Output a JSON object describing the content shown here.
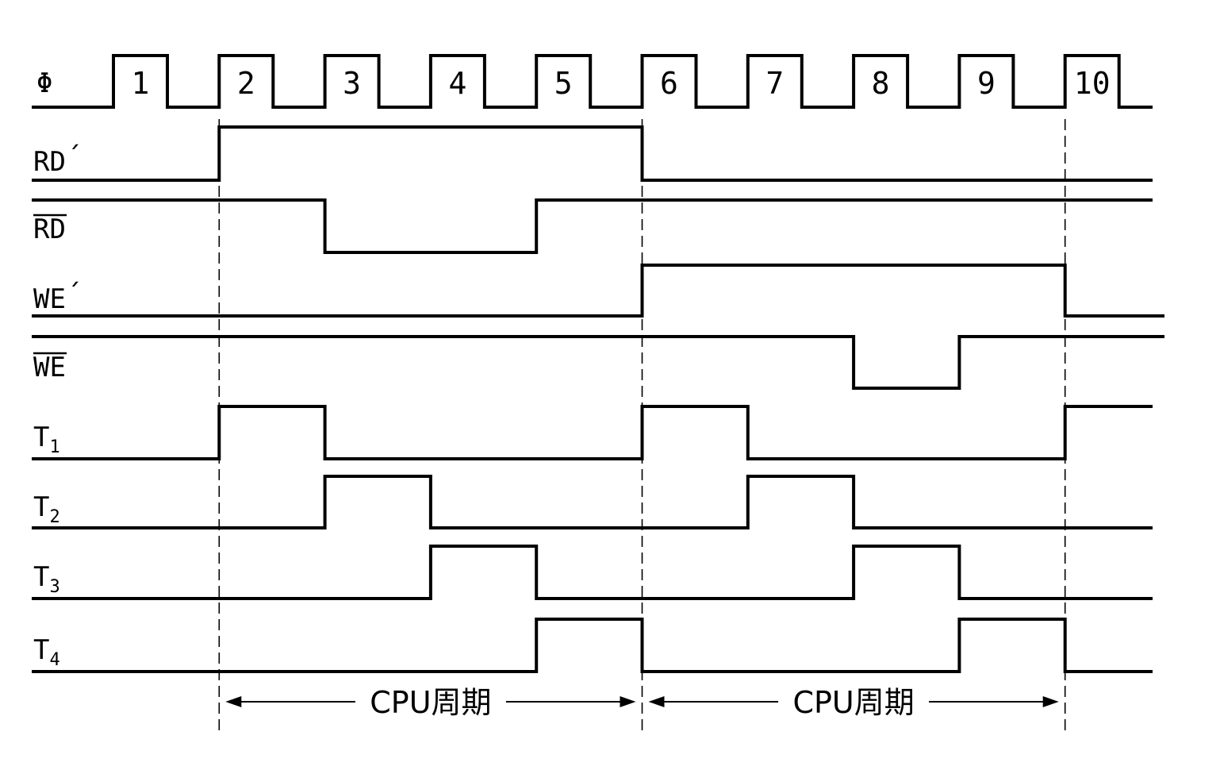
{
  "clock": {
    "label": "Φ",
    "pulses": [
      "1",
      "2",
      "3",
      "4",
      "5",
      "6",
      "7",
      "8",
      "9",
      "10"
    ]
  },
  "signals": [
    {
      "id": "rd-prime",
      "label": "RD",
      "suffix": "´",
      "overbar": false,
      "subscript": "",
      "high_intervals": [
        [
          2,
          6
        ]
      ]
    },
    {
      "id": "rd-bar",
      "label": "RD",
      "suffix": "",
      "overbar": true,
      "subscript": "",
      "low_intervals": [
        [
          3,
          5
        ]
      ]
    },
    {
      "id": "we-prime",
      "label": "WE",
      "suffix": "´",
      "overbar": false,
      "subscript": "",
      "high_intervals": [
        [
          6,
          10
        ]
      ]
    },
    {
      "id": "we-bar",
      "label": "WE",
      "suffix": "",
      "overbar": true,
      "subscript": "",
      "low_intervals": [
        [
          8,
          9
        ]
      ]
    },
    {
      "id": "t1",
      "label": "T",
      "suffix": "",
      "overbar": false,
      "subscript": "1",
      "high_intervals": [
        [
          2,
          3
        ],
        [
          6,
          7
        ],
        [
          10,
          10.8
        ]
      ]
    },
    {
      "id": "t2",
      "label": "T",
      "suffix": "",
      "overbar": false,
      "subscript": "2",
      "high_intervals": [
        [
          3,
          4
        ],
        [
          7,
          8
        ]
      ]
    },
    {
      "id": "t3",
      "label": "T",
      "suffix": "",
      "overbar": false,
      "subscript": "3",
      "high_intervals": [
        [
          4,
          5
        ],
        [
          8,
          9
        ]
      ]
    },
    {
      "id": "t4",
      "label": "T",
      "suffix": "",
      "overbar": false,
      "subscript": "4",
      "high_intervals": [
        [
          5,
          6
        ],
        [
          9,
          10
        ]
      ]
    }
  ],
  "cycles": [
    {
      "label": "CPU周期",
      "start": 2,
      "end": 6
    },
    {
      "label": "CPU周期",
      "start": 6,
      "end": 10
    }
  ]
}
